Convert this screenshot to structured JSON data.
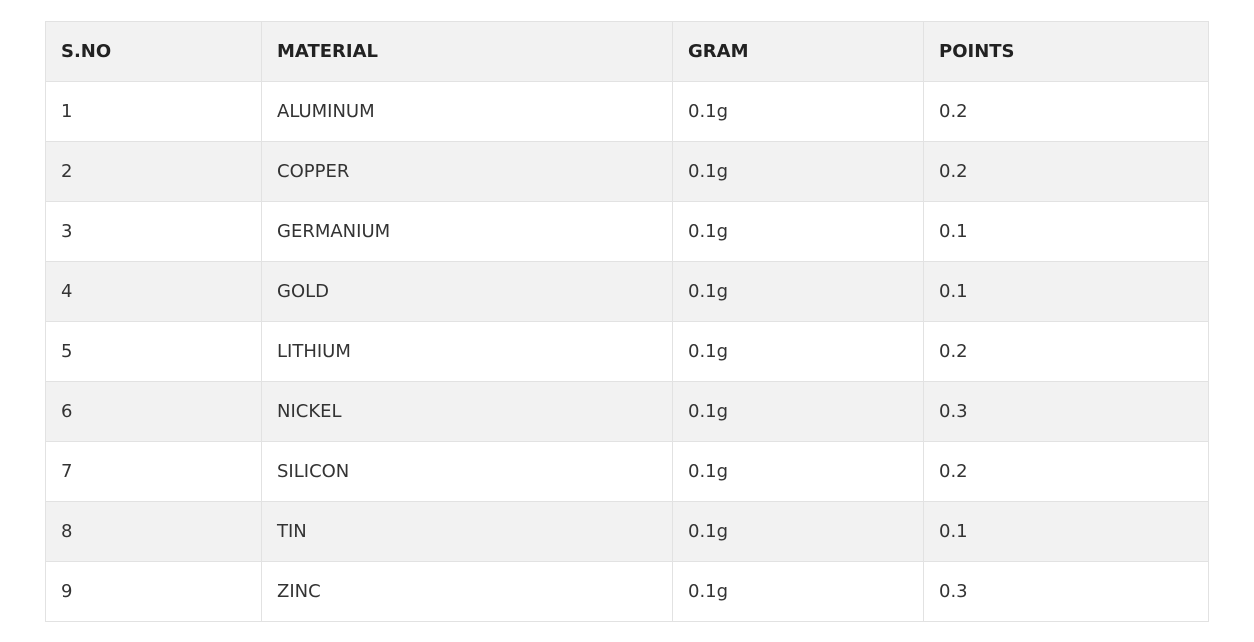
{
  "table": {
    "headers": [
      "S.NO",
      "MATERIAL",
      "GRAM",
      "POINTS"
    ],
    "rows": [
      [
        "1",
        "ALUMINUM",
        "0.1g",
        "0.2"
      ],
      [
        "2",
        "COPPER",
        "0.1g",
        "0.2"
      ],
      [
        "3",
        "GERMANIUM",
        "0.1g",
        "0.1"
      ],
      [
        "4",
        "GOLD",
        "0.1g",
        "0.1"
      ],
      [
        "5",
        "LITHIUM",
        "0.1g",
        "0.2"
      ],
      [
        "6",
        "NICKEL",
        "0.1g",
        "0.3"
      ],
      [
        "7",
        "SILICON",
        "0.1g",
        "0.2"
      ],
      [
        "8",
        "TIN",
        "0.1g",
        "0.1"
      ],
      [
        "9",
        "ZINC",
        "0.1g",
        "0.3"
      ]
    ]
  }
}
